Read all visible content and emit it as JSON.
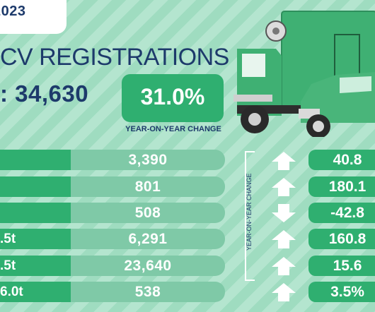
{
  "header": {
    "date_fragment": "2023",
    "title_fragment": "CV REGISTRATIONS",
    "total_fragment": ": 34,630",
    "headline_change": "31.0%",
    "headline_change_caption": "YEAR-ON-YEAR CHANGE"
  },
  "side_label": "YEAR-ON-YEAR CHANGE",
  "rows": [
    {
      "label": "",
      "value": "3,390",
      "change": "40.8",
      "direction": "up"
    },
    {
      "label": "",
      "value": "801",
      "change": "180.1",
      "direction": "up"
    },
    {
      "label": "",
      "value": "508",
      "change": "-42.8",
      "direction": "down"
    },
    {
      "label": ".5t",
      "value": "6,291",
      "change": "160.8",
      "direction": "up"
    },
    {
      "label": ".5t",
      "value": "23,640",
      "change": "15.6",
      "direction": "up"
    },
    {
      "label": "6.0t",
      "value": "538",
      "change": "3.5%",
      "direction": "up"
    }
  ],
  "colors": {
    "accent_green": "#2faf70",
    "light_green": "#7fc9a7",
    "navy": "#1d3a6b"
  },
  "icons": [
    "arrow-up-icon",
    "arrow-down-icon",
    "truck-icon",
    "pickup-icon"
  ]
}
